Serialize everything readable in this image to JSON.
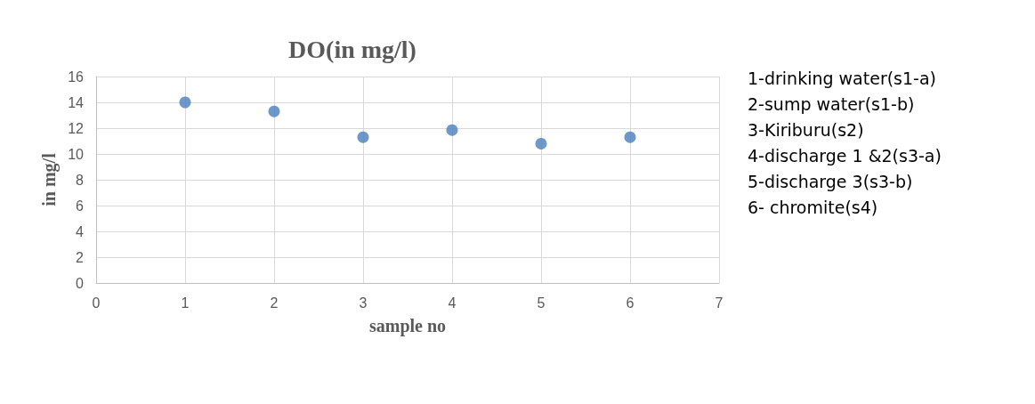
{
  "chart_data": {
    "type": "scatter",
    "title": "DO(in mg/l)",
    "xlabel": "sample no",
    "ylabel": "in mg/l",
    "x": [
      1,
      2,
      3,
      4,
      5,
      6
    ],
    "series": [
      {
        "color": "#4a7ebb",
        "values": [
          14.0,
          13.3,
          11.3,
          11.85,
          10.8,
          11.3
        ]
      }
    ],
    "xlim": [
      0,
      7
    ],
    "xticks": [
      0,
      1,
      2,
      3,
      4,
      5,
      6,
      7
    ],
    "ylim": [
      0,
      16
    ],
    "yticks": [
      0,
      2,
      4,
      6,
      8,
      10,
      12,
      14,
      16
    ],
    "grid": true,
    "marker": "circle",
    "annotations": [
      "1-drinking water(s1-a)",
      "2-sump water(s1-b)",
      "3-Kiriburu(s2)",
      "4-discharge 1 &2(s3-a)",
      "5-discharge 3(s3-b)",
      "6- chromite(s4)"
    ]
  }
}
